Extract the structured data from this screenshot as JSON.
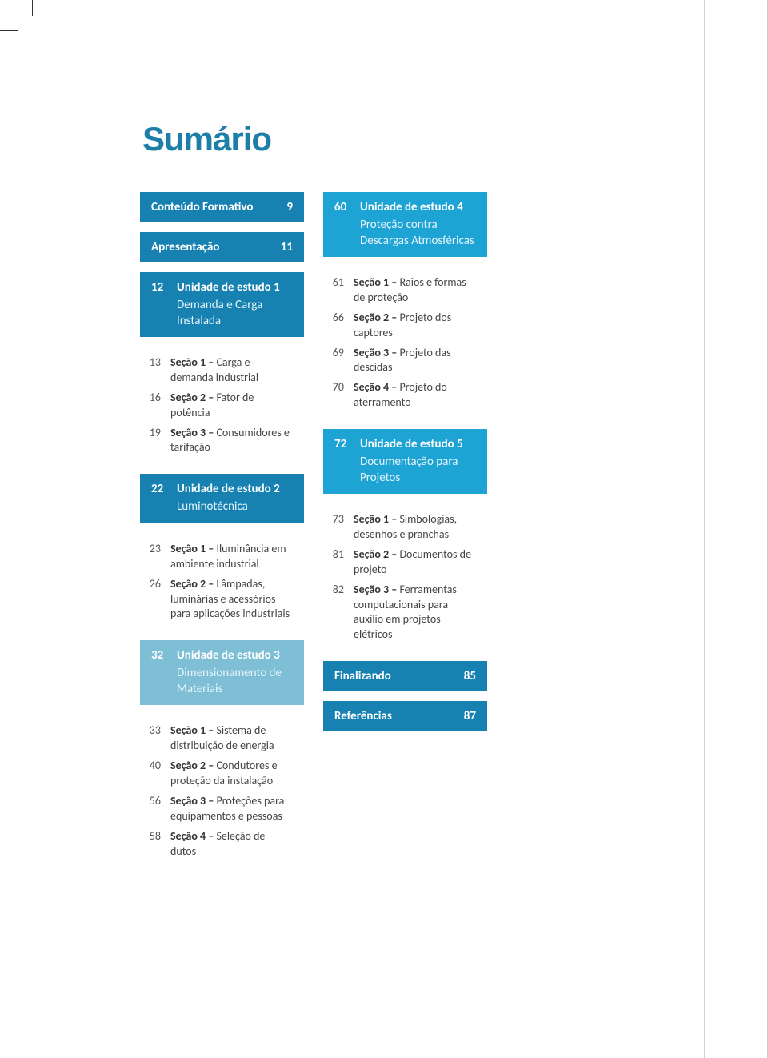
{
  "title": "Sumário",
  "colors": {
    "heading": "#1d7fa8",
    "box_primary": "#1782b2",
    "box_bright": "#1da3d4",
    "box_faded": "#7ebfd6",
    "text": "#444444",
    "page_bg": "#ffffff"
  },
  "left_column": [
    {
      "type": "simple",
      "label": "Conteúdo Formativo",
      "page": "9"
    },
    {
      "type": "simple",
      "label": "Apresentação",
      "page": "11"
    },
    {
      "type": "unit",
      "style": "primary",
      "page": "12",
      "title": "Unidade de estudo 1",
      "sub": "Demanda e Carga Instalada"
    },
    {
      "type": "sections",
      "items": [
        {
          "page": "13",
          "bold": "Seção 1 –",
          "rest": " Carga e demanda industrial"
        },
        {
          "page": "16",
          "bold": "Seção 2 –",
          "rest": " Fator de potência"
        },
        {
          "page": "19",
          "bold": "Seção 3 –",
          "rest": " Consumidores e tarifação"
        }
      ]
    },
    {
      "type": "unit",
      "style": "primary",
      "page": "22",
      "title": "Unidade de estudo 2",
      "sub": "Luminotécnica"
    },
    {
      "type": "sections",
      "items": [
        {
          "page": "23",
          "bold": "Seção 1 –",
          "rest": " Iluminância em ambiente industrial"
        },
        {
          "page": "26",
          "bold": "Seção 2 –",
          "rest": " Lâmpadas, luminárias e acessórios para aplicações industriais"
        }
      ]
    },
    {
      "type": "unit",
      "style": "faded",
      "page": "32",
      "title": "Unidade de estudo 3",
      "sub": "Dimensionamento de Materiais"
    },
    {
      "type": "sections",
      "items": [
        {
          "page": "33",
          "bold": "Seção 1 –",
          "rest": " Sistema de distribuição de energia"
        },
        {
          "page": "40",
          "bold": "Seção 2 –",
          "rest": " Condutores e proteção da instalação"
        },
        {
          "page": "56",
          "bold": "Seção 3 –",
          "rest": " Proteções para equipamentos e pessoas"
        },
        {
          "page": "58",
          "bold": "Seção 4 –",
          "rest": " Seleção de dutos"
        }
      ]
    }
  ],
  "right_column": [
    {
      "type": "unit",
      "style": "bright",
      "page": "60",
      "title": "Unidade de estudo 4",
      "sub": "Proteção contra Descargas Atmosféricas"
    },
    {
      "type": "sections",
      "items": [
        {
          "page": "61",
          "bold": "Seção 1 –",
          "rest": " Raios e formas de proteção"
        },
        {
          "page": "66",
          "bold": "Seção 2 –",
          "rest": " Projeto dos captores"
        },
        {
          "page": "69",
          "bold": "Seção 3 –",
          "rest": " Projeto das descidas"
        },
        {
          "page": "70",
          "bold": "Seção 4 –",
          "rest": " Projeto do aterramento"
        }
      ]
    },
    {
      "type": "unit",
      "style": "bright",
      "page": "72",
      "title": "Unidade de estudo 5",
      "sub": "Documentação para Projetos"
    },
    {
      "type": "sections",
      "items": [
        {
          "page": "73",
          "bold": "Seção 1 –",
          "rest": " Simbologias, desenhos e pranchas"
        },
        {
          "page": "81",
          "bold": "Seção 2 –",
          "rest": " Documentos de projeto"
        },
        {
          "page": "82",
          "bold": "Seção 3 –",
          "rest": " Ferramentas computacionais para auxílio em projetos elétricos"
        }
      ]
    },
    {
      "type": "simple",
      "label": "Finalizando",
      "page": "85"
    },
    {
      "type": "simple",
      "label": "Referências",
      "page": "87"
    }
  ]
}
